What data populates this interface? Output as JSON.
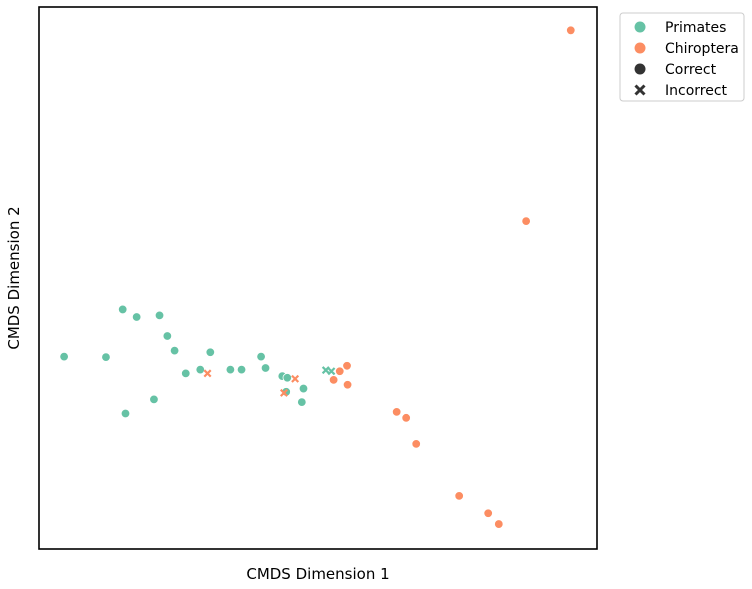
{
  "chart_data": {
    "type": "scatter",
    "xlabel": "CMDS Dimension 1",
    "ylabel": "CMDS Dimension 2",
    "xticks": false,
    "yticks": false,
    "grid": false,
    "legend_position": "outside-top-right",
    "xlim": [
      0,
      100
    ],
    "ylim": [
      0,
      100
    ],
    "colors": {
      "Primates": "#66c2a5",
      "Chiroptera": "#fc8d62",
      "neutral": "#333333"
    },
    "hue_legend": [
      "Primates",
      "Chiroptera"
    ],
    "style_legend": [
      {
        "label": "Correct",
        "marker": "circle"
      },
      {
        "label": "Incorrect",
        "marker": "x"
      }
    ],
    "series": [
      {
        "name": "Primates",
        "marker": "circle",
        "points": [
          [
            4.5,
            35.5
          ],
          [
            12,
            35.4
          ],
          [
            15,
            44.2
          ],
          [
            17.5,
            42.8
          ],
          [
            21.6,
            43.1
          ],
          [
            23,
            39.3
          ],
          [
            24.3,
            36.6
          ],
          [
            26.3,
            32.4
          ],
          [
            20.6,
            27.6
          ],
          [
            15.5,
            25.0
          ],
          [
            28.9,
            33.1
          ],
          [
            30.7,
            36.3
          ],
          [
            34.3,
            33.1
          ],
          [
            36.3,
            33.1
          ],
          [
            39.8,
            35.5
          ],
          [
            40.6,
            33.4
          ],
          [
            43.6,
            31.9
          ],
          [
            44.5,
            31.6
          ],
          [
            47.4,
            29.6
          ],
          [
            47.1,
            27.1
          ],
          [
            44.3,
            29.0
          ]
        ]
      },
      {
        "name": "Chiroptera",
        "marker": "circle",
        "points": [
          [
            95.3,
            95.7
          ],
          [
            87.3,
            60.5
          ],
          [
            55.2,
            33.8
          ],
          [
            53.9,
            32.8
          ],
          [
            52.8,
            31.2
          ],
          [
            55.3,
            30.3
          ],
          [
            64.1,
            25.3
          ],
          [
            65.8,
            24.2
          ],
          [
            67.6,
            19.4
          ],
          [
            75.3,
            9.8
          ],
          [
            80.5,
            6.6
          ],
          [
            82.4,
            4.6
          ]
        ]
      },
      {
        "name": "Primates",
        "marker": "x",
        "points": [
          [
            51.4,
            33.0
          ],
          [
            52.4,
            32.8
          ]
        ]
      },
      {
        "name": "Chiroptera",
        "marker": "x",
        "points": [
          [
            30.2,
            32.4
          ],
          [
            45.9,
            31.4
          ],
          [
            43.9,
            28.8
          ]
        ]
      }
    ]
  }
}
